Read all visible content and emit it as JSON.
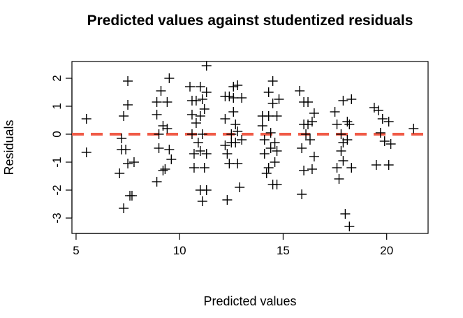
{
  "chart_data": {
    "type": "scatter",
    "title": "Predicted values against studentized residuals",
    "xlabel": "Predicted values",
    "ylabel": "Residuals",
    "xlim": [
      4.8,
      22.0
    ],
    "ylim": [
      -3.55,
      2.6
    ],
    "xticks": [
      5,
      10,
      15,
      20
    ],
    "xtick_labels": [
      "5",
      "10",
      "15",
      "20"
    ],
    "yticks": [
      -3,
      -2,
      -1,
      0,
      1,
      2
    ],
    "ytick_labels": [
      "-3",
      "-2",
      "-1",
      "0",
      "1",
      "2"
    ],
    "marker": "plus",
    "marker_color": "#000000",
    "grid": false,
    "reference_line": {
      "y": 0,
      "style": "dashed",
      "color": "#f05a46"
    },
    "points": [
      [
        5.5,
        0.55
      ],
      [
        5.5,
        -0.65
      ],
      [
        7.2,
        -0.15
      ],
      [
        7.2,
        -0.55
      ],
      [
        7.1,
        -1.4
      ],
      [
        7.3,
        -2.65
      ],
      [
        7.3,
        0.65
      ],
      [
        7.4,
        -0.55
      ],
      [
        7.5,
        1.9
      ],
      [
        7.5,
        1.05
      ],
      [
        7.5,
        -1.05
      ],
      [
        7.6,
        -2.2
      ],
      [
        7.7,
        -2.2
      ],
      [
        7.8,
        -1.0
      ],
      [
        8.9,
        1.15
      ],
      [
        8.9,
        0.7
      ],
      [
        9.0,
        0.0
      ],
      [
        9.0,
        -0.5
      ],
      [
        8.9,
        -1.7
      ],
      [
        9.1,
        1.55
      ],
      [
        9.2,
        0.3
      ],
      [
        9.2,
        -1.3
      ],
      [
        9.3,
        -1.25
      ],
      [
        9.4,
        1.15
      ],
      [
        9.4,
        0.2
      ],
      [
        9.5,
        -0.55
      ],
      [
        9.5,
        2.0
      ],
      [
        9.6,
        -0.9
      ],
      [
        10.5,
        1.7
      ],
      [
        10.6,
        1.2
      ],
      [
        10.6,
        0.7
      ],
      [
        10.6,
        0.0
      ],
      [
        10.7,
        -0.7
      ],
      [
        10.7,
        -1.2
      ],
      [
        10.8,
        1.2
      ],
      [
        10.8,
        0.4
      ],
      [
        10.9,
        -0.3
      ],
      [
        11.0,
        1.7
      ],
      [
        11.0,
        0.65
      ],
      [
        11.0,
        -0.6
      ],
      [
        11.0,
        -2.0
      ],
      [
        11.1,
        1.25
      ],
      [
        11.1,
        0.0
      ],
      [
        11.1,
        -2.4
      ],
      [
        11.2,
        0.9
      ],
      [
        11.2,
        -1.2
      ],
      [
        11.3,
        2.45
      ],
      [
        11.3,
        -2.0
      ],
      [
        11.3,
        -0.7
      ],
      [
        11.3,
        1.5
      ],
      [
        12.2,
        1.35
      ],
      [
        12.2,
        0.55
      ],
      [
        12.2,
        -0.4
      ],
      [
        12.3,
        -0.7
      ],
      [
        12.3,
        -2.35
      ],
      [
        12.4,
        1.35
      ],
      [
        12.4,
        -1.05
      ],
      [
        12.5,
        0.0
      ],
      [
        12.5,
        -0.3
      ],
      [
        12.6,
        1.7
      ],
      [
        12.6,
        1.3
      ],
      [
        12.6,
        0.8
      ],
      [
        12.7,
        0.35
      ],
      [
        12.7,
        -0.3
      ],
      [
        12.8,
        1.75
      ],
      [
        12.8,
        0.1
      ],
      [
        12.8,
        -1.05
      ],
      [
        12.9,
        -1.9
      ],
      [
        13.0,
        1.3
      ],
      [
        13.0,
        -0.2
      ],
      [
        14.0,
        0.65
      ],
      [
        14.0,
        0.3
      ],
      [
        14.1,
        -0.2
      ],
      [
        14.1,
        -0.7
      ],
      [
        14.2,
        -1.4
      ],
      [
        14.3,
        1.5
      ],
      [
        14.3,
        0.65
      ],
      [
        14.3,
        -1.2
      ],
      [
        14.4,
        0.05
      ],
      [
        14.4,
        -0.5
      ],
      [
        14.5,
        1.9
      ],
      [
        14.5,
        1.1
      ],
      [
        14.5,
        -1.8
      ],
      [
        14.6,
        -0.3
      ],
      [
        14.6,
        -1.0
      ],
      [
        14.7,
        0.65
      ],
      [
        14.7,
        -0.6
      ],
      [
        14.7,
        -1.8
      ],
      [
        14.8,
        1.25
      ],
      [
        15.8,
        1.55
      ],
      [
        15.9,
        -0.5
      ],
      [
        15.9,
        -2.15
      ],
      [
        16.0,
        1.15
      ],
      [
        16.0,
        0.35
      ],
      [
        16.0,
        -1.3
      ],
      [
        16.1,
        0.0
      ],
      [
        16.2,
        1.15
      ],
      [
        16.2,
        0.35
      ],
      [
        16.3,
        -0.2
      ],
      [
        16.4,
        0.45
      ],
      [
        16.4,
        -1.25
      ],
      [
        16.5,
        0.75
      ],
      [
        16.5,
        -0.8
      ],
      [
        17.5,
        0.8
      ],
      [
        17.6,
        0.35
      ],
      [
        17.6,
        -1.2
      ],
      [
        17.7,
        -1.6
      ],
      [
        17.8,
        0.0
      ],
      [
        17.8,
        -0.6
      ],
      [
        17.9,
        1.2
      ],
      [
        17.9,
        -0.3
      ],
      [
        17.9,
        -0.95
      ],
      [
        18.0,
        -2.85
      ],
      [
        18.1,
        0.45
      ],
      [
        18.1,
        -0.2
      ],
      [
        18.2,
        -3.3
      ],
      [
        18.2,
        0.35
      ],
      [
        18.3,
        1.25
      ],
      [
        18.3,
        -1.2
      ],
      [
        19.4,
        0.95
      ],
      [
        19.5,
        -1.1
      ],
      [
        19.6,
        0.85
      ],
      [
        19.7,
        0.05
      ],
      [
        19.8,
        0.55
      ],
      [
        19.9,
        -0.25
      ],
      [
        20.1,
        0.45
      ],
      [
        20.1,
        -1.1
      ],
      [
        20.2,
        -0.35
      ],
      [
        21.3,
        0.2
      ]
    ]
  }
}
